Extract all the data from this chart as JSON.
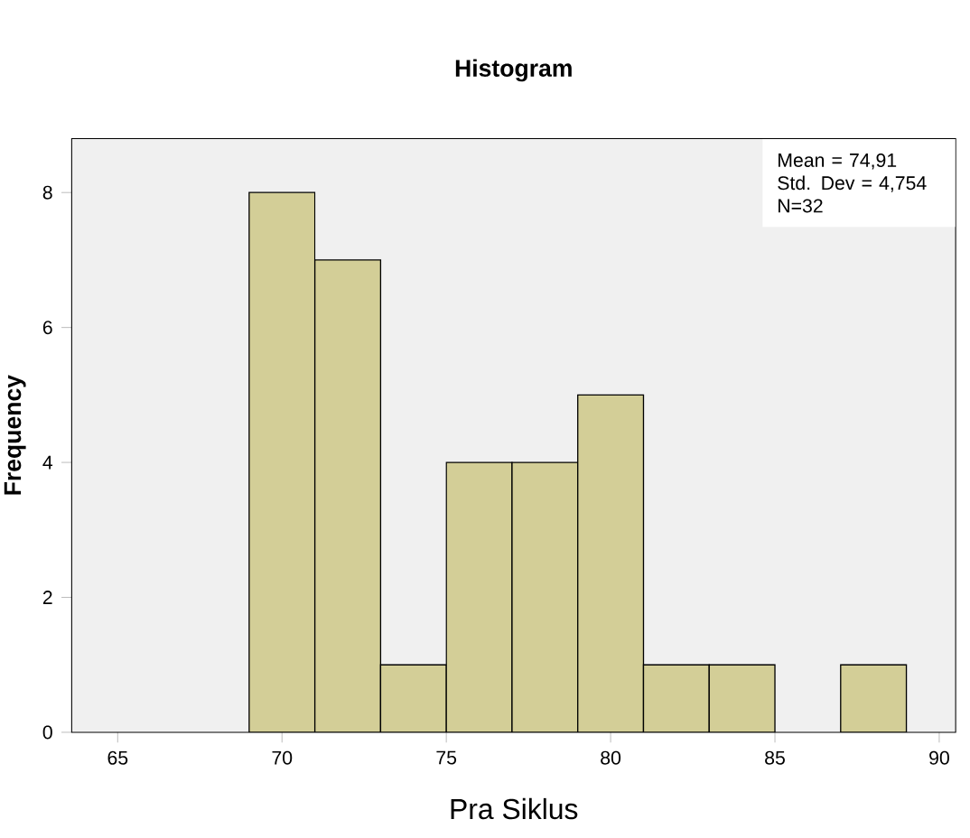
{
  "chart_data": {
    "type": "histogram",
    "title": "Histogram",
    "xlabel": "Pra Siklus",
    "ylabel": "Frequency",
    "bins": [
      69,
      71,
      73,
      75,
      77,
      79,
      81,
      83,
      85,
      87,
      89
    ],
    "values": [
      8,
      7,
      1,
      4,
      4,
      5,
      1,
      1,
      0,
      1
    ],
    "color": "#d3ce97",
    "xlim": [
      63.6,
      90.5
    ],
    "xticks": [
      65,
      70,
      75,
      80,
      85,
      90
    ],
    "ylim": [
      0,
      8.8
    ],
    "yticks": [
      0,
      2,
      4,
      6,
      8
    ],
    "grid": false,
    "annotations": [
      "Mean = 74,91",
      "Std. Dev = 4,754",
      "N=32"
    ]
  }
}
